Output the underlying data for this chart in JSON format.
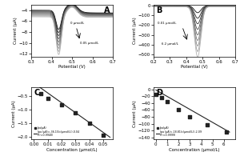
{
  "panel_A": {
    "label": "A",
    "xlabel": "Potential (V)",
    "ylabel": "Current (μA)",
    "xlim": [
      0.3,
      0.7
    ],
    "ylim": [
      -12.5,
      -3.0
    ],
    "yticks": [
      -12,
      -10,
      -8,
      -6,
      -4
    ],
    "xticks": [
      0.3,
      0.4,
      0.5,
      0.6,
      0.7
    ],
    "annotation_top": "0 μmol/L",
    "annotation_bot": "0.05 μmol/L",
    "n_curves": 9
  },
  "panel_B": {
    "label": "B",
    "xlabel": "Potential (V)",
    "ylabel": "Current (μA)",
    "xlim": [
      0.2,
      0.7
    ],
    "ylim": [
      -520,
      5
    ],
    "yticks": [
      -500,
      -400,
      -300,
      -200,
      -100,
      0
    ],
    "xticks": [
      0.2,
      0.3,
      0.4,
      0.5,
      0.6,
      0.7
    ],
    "annotation_top": "0.01 μmol/L",
    "annotation_bot": "6.2 μmol/L",
    "n_curves": 9
  },
  "panel_C": {
    "label": "C",
    "xlabel": "Concentration (μmol/L)",
    "ylabel": "Current (μA)",
    "xlim": [
      -0.002,
      0.057
    ],
    "ylim": [
      -2.1,
      -0.2
    ],
    "xticks": [
      0.0,
      0.01,
      0.02,
      0.03,
      0.04,
      0.05
    ],
    "yticks": [
      -2.0,
      -1.5,
      -1.0,
      -0.5
    ],
    "scatter_x": [
      0.005,
      0.01,
      0.02,
      0.03,
      0.04,
      0.05
    ],
    "scatter_y": [
      -0.43,
      -0.6,
      -0.83,
      -1.12,
      -1.52,
      -1.95
    ],
    "fit_label": "Ipa (μA) = -36.15(c(μmol/L)) - 0.04  (R²=0.9940)",
    "slope": -36.15,
    "intercept": -0.04
  },
  "panel_D": {
    "label": "D",
    "xlabel": "Concentration (μmol/L)",
    "ylabel": "Current (μA)",
    "xlim": [
      -0.2,
      7.0
    ],
    "ylim": [
      -145,
      5
    ],
    "xticks": [
      0,
      1,
      2,
      3,
      4,
      5,
      6
    ],
    "yticks": [
      -140,
      -120,
      -100,
      -80,
      -60,
      -40,
      -20,
      0
    ],
    "scatter_x": [
      0.01,
      0.5,
      1.0,
      2.0,
      3.0,
      4.5,
      6.2
    ],
    "scatter_y": [
      -14,
      -25,
      -37,
      -58,
      -79,
      -104,
      -123
    ],
    "fit_label": "Ipa (μA) = -18.81(c(μmol/L)) - 2.09  (R²=0.9999)",
    "slope": -18.81,
    "intercept": -2.09
  }
}
